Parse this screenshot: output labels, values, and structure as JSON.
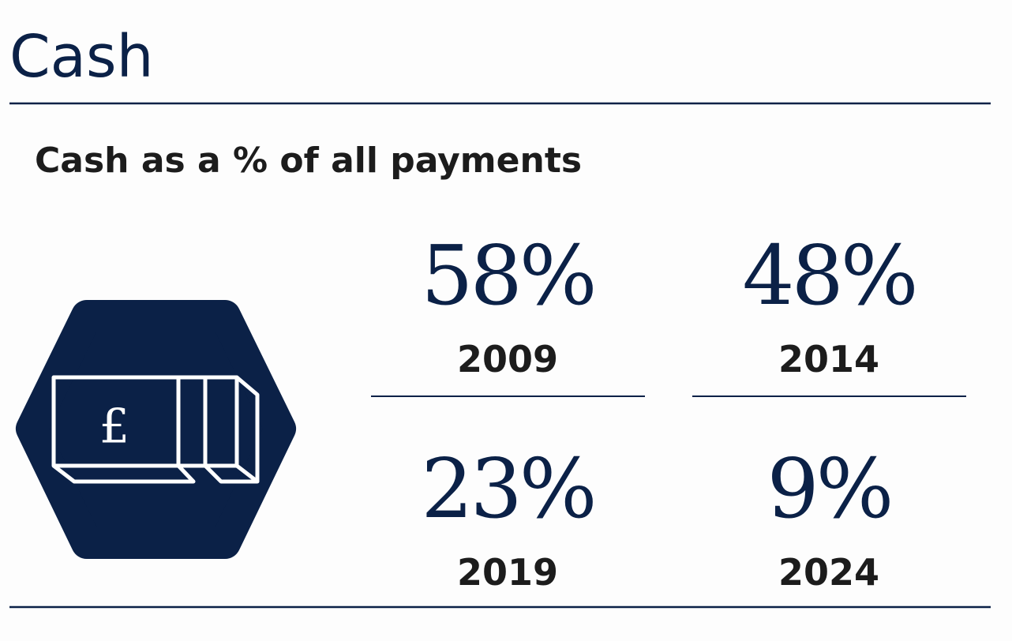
{
  "header": {
    "title": "Cash"
  },
  "subtitle": "Cash as a % of all payments",
  "stats": [
    {
      "value": "58%",
      "year": "2009"
    },
    {
      "value": "48%",
      "year": "2014"
    },
    {
      "value": "23%",
      "year": "2019"
    },
    {
      "value": "9%",
      "year": "2024"
    }
  ]
}
